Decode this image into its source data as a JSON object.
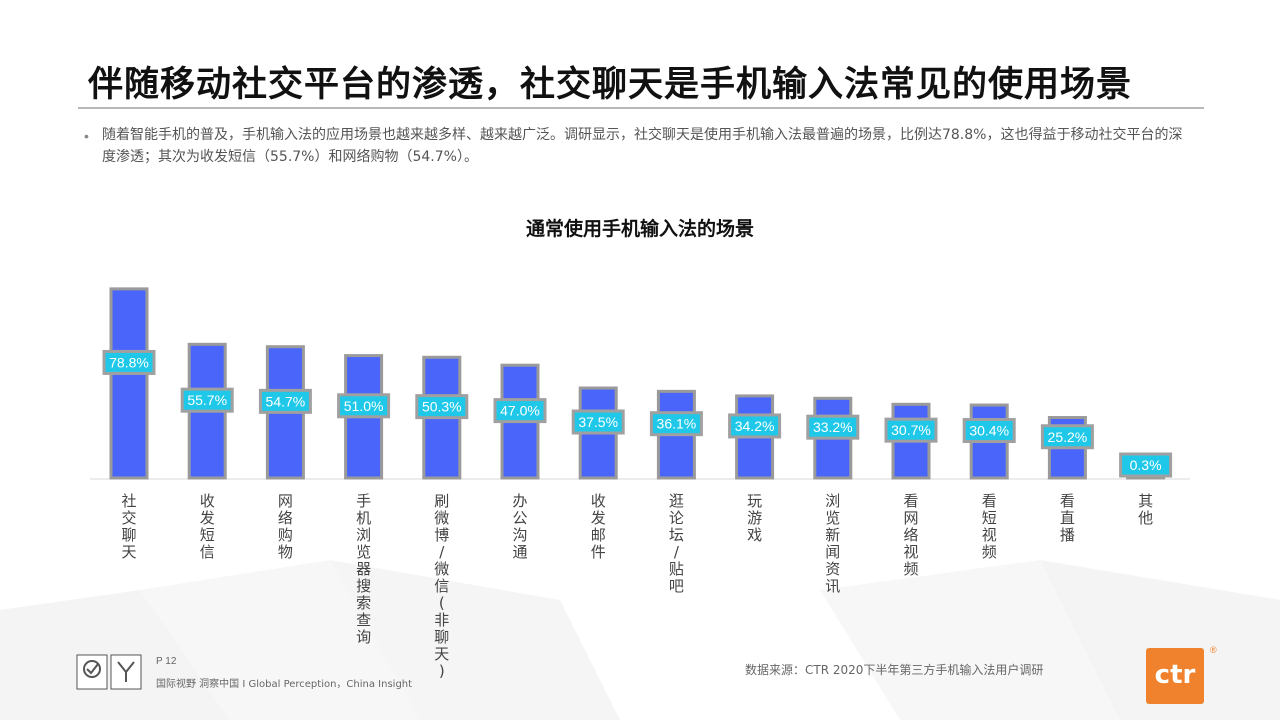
{
  "slide": {
    "title": "伴随移动社交平台的渗透，社交聊天是手机输入法常见的使用场景",
    "bullet": "随着智能手机的普及，手机输入法的应用场景也越来越多样、越来越广泛。调研显示，社交聊天是使用手机输入法最普遍的场景，比例达78.8%，这也得益于移动社交平台的深度渗透；其次为收发短信（55.7%）和网络购物（54.7%）。"
  },
  "chart_data": {
    "type": "bar",
    "title": "通常使用手机输入法的场景",
    "categories": [
      "社交聊天",
      "收发短信",
      "网络购物",
      "手机浏览器搜索查询",
      "刷微博/微信(非聊天)",
      "办公沟通",
      "收发邮件",
      "逛论坛/贴吧",
      "玩游戏",
      "浏览新闻资讯",
      "看网络视频",
      "看短视频",
      "看直播",
      "其他"
    ],
    "values": [
      78.8,
      55.7,
      54.7,
      51.0,
      50.3,
      47.0,
      37.5,
      36.1,
      34.2,
      33.2,
      30.7,
      30.4,
      25.2,
      0.3
    ],
    "value_labels": [
      "78.8%",
      "55.7%",
      "54.7%",
      "51.0%",
      "50.3%",
      "47.0%",
      "37.5%",
      "36.1%",
      "34.2%",
      "33.2%",
      "30.7%",
      "30.4%",
      "25.2%",
      "0.3%"
    ],
    "xlabel": "",
    "ylabel": "",
    "ylim": [
      0,
      80
    ],
    "grid": false,
    "legend": "none",
    "colors": {
      "bar": "#4a66fa",
      "bar_border": "#9a9a9a",
      "label_bg": "#1fc8e8",
      "label_text": "#ffffff"
    }
  },
  "footer": {
    "page": "P 12",
    "slogan": "国际视野  洞察中国 I  Global Perception，China Insight",
    "source": "数据来源：CTR 2020下半年第三方手机输入法用户调研",
    "logo_text": "ctr",
    "logo_reg": "®"
  }
}
